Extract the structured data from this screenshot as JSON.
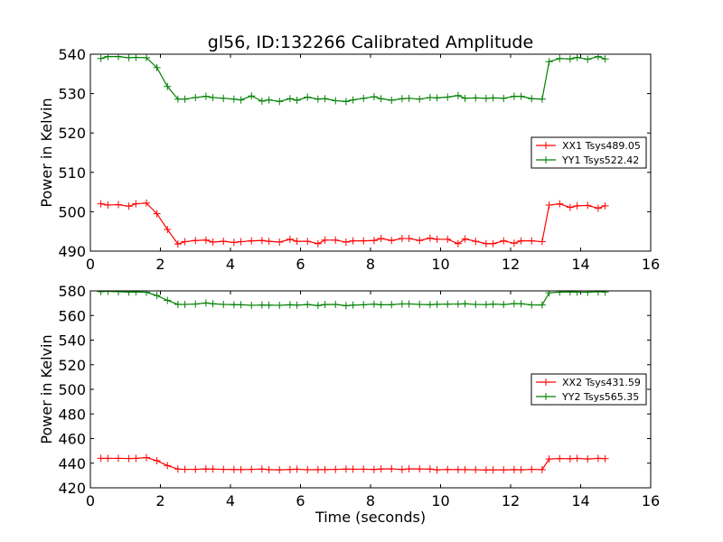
{
  "figure": {
    "title": "gl56, ID:132266 Calibrated Amplitude",
    "xlabel": "Time (seconds)"
  },
  "chart_data": [
    {
      "type": "line",
      "title": "gl56, ID:132266 Calibrated Amplitude",
      "xlabel": "",
      "ylabel": "Power in Kelvin",
      "xlim": [
        0,
        16
      ],
      "ylim": [
        490,
        540
      ],
      "xticks": [
        "0",
        "2",
        "4",
        "6",
        "8",
        "10",
        "12",
        "14",
        "16"
      ],
      "yticks": [
        "490",
        "500",
        "510",
        "520",
        "530",
        "540"
      ],
      "grid": false,
      "legend_position": "center-right",
      "x": [
        0.3,
        0.5,
        0.8,
        1.1,
        1.3,
        1.6,
        1.9,
        2.2,
        2.5,
        2.7,
        3.0,
        3.3,
        3.5,
        3.8,
        4.1,
        4.3,
        4.6,
        4.9,
        5.1,
        5.4,
        5.7,
        5.9,
        6.2,
        6.5,
        6.7,
        7.0,
        7.3,
        7.5,
        7.8,
        8.1,
        8.3,
        8.6,
        8.9,
        9.1,
        9.4,
        9.7,
        9.9,
        10.2,
        10.5,
        10.7,
        11.0,
        11.3,
        11.5,
        11.8,
        12.1,
        12.3,
        12.6,
        12.9,
        13.1,
        13.4,
        13.7,
        13.9,
        14.2,
        14.5,
        14.7
      ],
      "series": [
        {
          "name": "XX1 Tsys489.05",
          "color": "#ff0000",
          "values": [
            502.0,
            501.7,
            501.8,
            501.4,
            502.0,
            502.2,
            499.5,
            495.5,
            491.8,
            492.4,
            492.7,
            492.8,
            492.3,
            492.5,
            492.2,
            492.4,
            492.6,
            492.7,
            492.5,
            492.3,
            493.0,
            492.5,
            492.5,
            491.9,
            492.8,
            492.8,
            492.3,
            492.6,
            492.6,
            492.7,
            493.2,
            492.7,
            493.2,
            493.2,
            492.7,
            493.3,
            493.0,
            493.0,
            491.9,
            493.1,
            492.5,
            491.9,
            491.9,
            492.6,
            492.0,
            492.6,
            492.6,
            492.4,
            501.7,
            502.0,
            501.1,
            501.5,
            501.6,
            500.9,
            501.5
          ]
        },
        {
          "name": "YY1 Tsys522.42",
          "color": "#008000",
          "values": [
            538.9,
            539.4,
            539.4,
            539.1,
            539.2,
            539.1,
            536.6,
            531.8,
            528.6,
            528.6,
            529.0,
            529.3,
            529.0,
            528.8,
            528.6,
            528.4,
            529.4,
            528.1,
            528.4,
            528.0,
            528.7,
            528.3,
            529.1,
            528.6,
            528.7,
            528.2,
            528.0,
            528.4,
            528.8,
            529.2,
            528.7,
            528.3,
            528.7,
            528.8,
            528.6,
            529.0,
            528.9,
            529.1,
            529.5,
            528.8,
            528.9,
            528.8,
            528.9,
            528.8,
            529.3,
            529.3,
            528.7,
            528.6,
            538.1,
            538.9,
            538.8,
            539.2,
            538.7,
            539.4,
            538.8
          ]
        }
      ]
    },
    {
      "type": "line",
      "title": "",
      "xlabel": "Time (seconds)",
      "ylabel": "Power in Kelvin",
      "xlim": [
        0,
        16
      ],
      "ylim": [
        420,
        580
      ],
      "xticks": [
        "0",
        "2",
        "4",
        "6",
        "8",
        "10",
        "12",
        "14",
        "16"
      ],
      "yticks": [
        "420",
        "440",
        "460",
        "480",
        "500",
        "520",
        "540",
        "560",
        "580"
      ],
      "grid": false,
      "legend_position": "center-right",
      "x": [
        0.3,
        0.5,
        0.8,
        1.1,
        1.3,
        1.6,
        1.9,
        2.2,
        2.5,
        2.7,
        3.0,
        3.3,
        3.5,
        3.8,
        4.1,
        4.3,
        4.6,
        4.9,
        5.1,
        5.4,
        5.7,
        5.9,
        6.2,
        6.5,
        6.7,
        7.0,
        7.3,
        7.5,
        7.8,
        8.1,
        8.3,
        8.6,
        8.9,
        9.1,
        9.4,
        9.7,
        9.9,
        10.2,
        10.5,
        10.7,
        11.0,
        11.3,
        11.5,
        11.8,
        12.1,
        12.3,
        12.6,
        12.9,
        13.1,
        13.4,
        13.7,
        13.9,
        14.2,
        14.5,
        14.7
      ],
      "series": [
        {
          "name": "XX2 Tsys431.59",
          "color": "#ff0000",
          "values": [
            443.9,
            443.9,
            443.9,
            443.8,
            443.9,
            444.6,
            442.0,
            438.1,
            435.2,
            435.0,
            435.0,
            435.3,
            435.2,
            435.0,
            434.9,
            434.8,
            435.0,
            435.2,
            434.8,
            434.6,
            434.9,
            435.1,
            434.7,
            434.8,
            434.8,
            435.0,
            435.2,
            435.1,
            435.1,
            434.9,
            435.3,
            435.4,
            434.9,
            435.4,
            435.3,
            435.2,
            434.6,
            434.9,
            434.8,
            434.8,
            434.7,
            434.5,
            434.6,
            434.6,
            434.8,
            434.6,
            435.0,
            434.8,
            443.4,
            443.8,
            443.6,
            443.9,
            443.4,
            443.9,
            443.7
          ]
        },
        {
          "name": "YY2 Tsys565.35",
          "color": "#008000",
          "values": [
            579.4,
            579.6,
            579.3,
            579.0,
            579.2,
            578.9,
            576.2,
            572.3,
            569.0,
            569.0,
            569.3,
            570.2,
            569.5,
            569.0,
            568.8,
            568.7,
            568.3,
            568.5,
            568.4,
            568.3,
            568.7,
            568.4,
            568.9,
            568.1,
            568.9,
            569.0,
            568.0,
            568.4,
            568.7,
            569.2,
            568.7,
            568.8,
            569.4,
            569.4,
            569.0,
            568.8,
            569.1,
            569.2,
            569.3,
            569.5,
            569.0,
            568.9,
            569.2,
            568.9,
            569.6,
            569.5,
            568.6,
            568.5,
            578.4,
            579.0,
            579.2,
            579.0,
            578.9,
            579.3,
            579.1
          ]
        }
      ]
    }
  ]
}
